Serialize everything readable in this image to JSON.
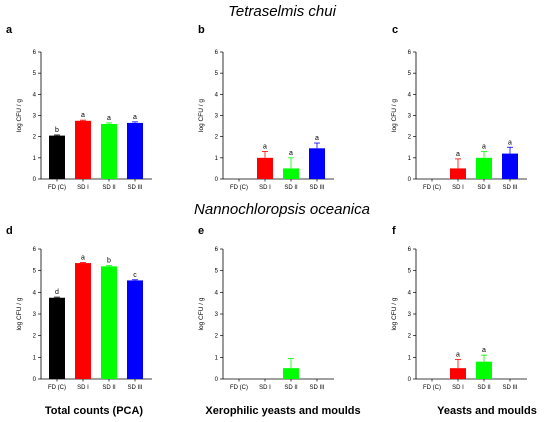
{
  "figure": {
    "row_titles": [
      "Tetraselmis chui",
      "Nannochloropsis oceanica"
    ],
    "column_titles": [
      "Total counts (PCA)",
      "Xerophilic yeasts and moulds",
      "Yeasts and moulds"
    ]
  },
  "colors": {
    "FD (C)": "#000000",
    "SD I": "#ff0000",
    "SD II": "#00ff00",
    "SD III": "#0000ff"
  },
  "chart_data": [
    {
      "type": "bar",
      "panel": "a",
      "categories": [
        "FD (C)",
        "SD I",
        "SD II",
        "SD III"
      ],
      "values": [
        2.05,
        2.75,
        2.6,
        2.65
      ],
      "errors": [
        0.03,
        0.03,
        0.05,
        0.05
      ],
      "letters": [
        "b",
        "a",
        "a",
        "a"
      ],
      "ylabel": "log CFU / g",
      "ylim": [
        0,
        6
      ],
      "yticks": [
        0,
        1,
        2,
        3,
        4,
        5,
        6
      ]
    },
    {
      "type": "bar",
      "panel": "b",
      "categories": [
        "FD (C)",
        "SD I",
        "SD II",
        "SD III"
      ],
      "values": [
        0,
        1.0,
        0.5,
        1.45
      ],
      "errors": [
        0,
        0.3,
        0.5,
        0.25
      ],
      "letters": [
        "",
        "a",
        "a",
        "a"
      ],
      "ylabel": "log CFU / g",
      "ylim": [
        0,
        6
      ],
      "yticks": [
        0,
        1,
        2,
        3,
        4,
        5,
        6
      ]
    },
    {
      "type": "bar",
      "panel": "c",
      "categories": [
        "FD (C)",
        "SD I",
        "SD II",
        "SD III"
      ],
      "values": [
        0,
        0.5,
        1.0,
        1.2
      ],
      "errors": [
        0,
        0.45,
        0.3,
        0.3
      ],
      "letters": [
        "",
        "a",
        "a",
        "a"
      ],
      "ylabel": "log CFU / g",
      "ylim": [
        0,
        6
      ],
      "yticks": [
        0,
        1,
        2,
        3,
        4,
        5,
        6
      ]
    },
    {
      "type": "bar",
      "panel": "d",
      "categories": [
        "FD (C)",
        "SD I",
        "SD II",
        "SD III"
      ],
      "values": [
        3.75,
        5.35,
        5.2,
        4.55
      ],
      "errors": [
        0.03,
        0.03,
        0.03,
        0.03
      ],
      "letters": [
        "d",
        "a",
        "b",
        "c"
      ],
      "ylabel": "log CFU / g",
      "ylim": [
        0,
        6
      ],
      "yticks": [
        0,
        1,
        2,
        3,
        4,
        5,
        6
      ]
    },
    {
      "type": "bar",
      "panel": "e",
      "categories": [
        "FD (C)",
        "SD I",
        "SD II",
        "SD III"
      ],
      "values": [
        0,
        0,
        0.5,
        0
      ],
      "errors": [
        0,
        0,
        0.45,
        0
      ],
      "letters": [
        "",
        "",
        "",
        ""
      ],
      "ylabel": "log CFU / g",
      "ylim": [
        0,
        6
      ],
      "yticks": [
        0,
        1,
        2,
        3,
        4,
        5,
        6
      ]
    },
    {
      "type": "bar",
      "panel": "f",
      "categories": [
        "FD (C)",
        "SD I",
        "SD II",
        "SD III"
      ],
      "values": [
        0,
        0.5,
        0.8,
        0
      ],
      "errors": [
        0,
        0.4,
        0.3,
        0
      ],
      "letters": [
        "",
        "a",
        "a",
        ""
      ],
      "ylabel": "log CFU / g",
      "ylim": [
        0,
        6
      ],
      "yticks": [
        0,
        1,
        2,
        3,
        4,
        5,
        6
      ]
    }
  ]
}
